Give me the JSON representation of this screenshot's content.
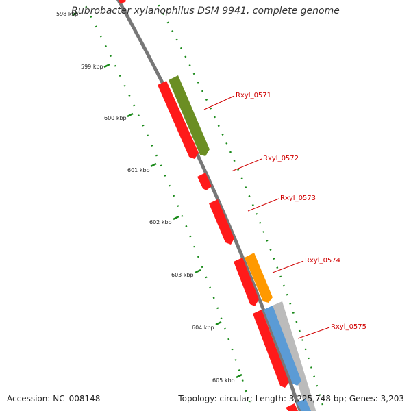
{
  "title": "Rubrobacter xylanophilus DSM 9941, complete genome",
  "accession": "Accession: NC_008148",
  "topology": "Topology: circular; Length: 3,225,748 bp; Genes: 3,203",
  "ticks": [
    {
      "label": "598 kbp"
    },
    {
      "label": "599 kbp"
    },
    {
      "label": "600 kbp"
    },
    {
      "label": "601 kbp"
    },
    {
      "label": "602 kbp"
    },
    {
      "label": "603 kbp"
    },
    {
      "label": "604 kbp"
    },
    {
      "label": "605 kbp"
    }
  ],
  "genes": [
    {
      "label": "Rxyl_0571"
    },
    {
      "label": "Rxyl_0572"
    },
    {
      "label": "Rxyl_0573"
    },
    {
      "label": "Rxyl_0574"
    },
    {
      "label": "Rxyl_0575"
    }
  ],
  "colors": {
    "backbone": "#777777",
    "gene_red": "#ff1a1a",
    "gene_green": "#6b8e23",
    "gene_orange": "#ff9900",
    "gene_blue": "#5b9bd5",
    "gene_grey": "#bbbbbb",
    "tick_green": "#1a8a1a",
    "label_red": "#d00000"
  }
}
